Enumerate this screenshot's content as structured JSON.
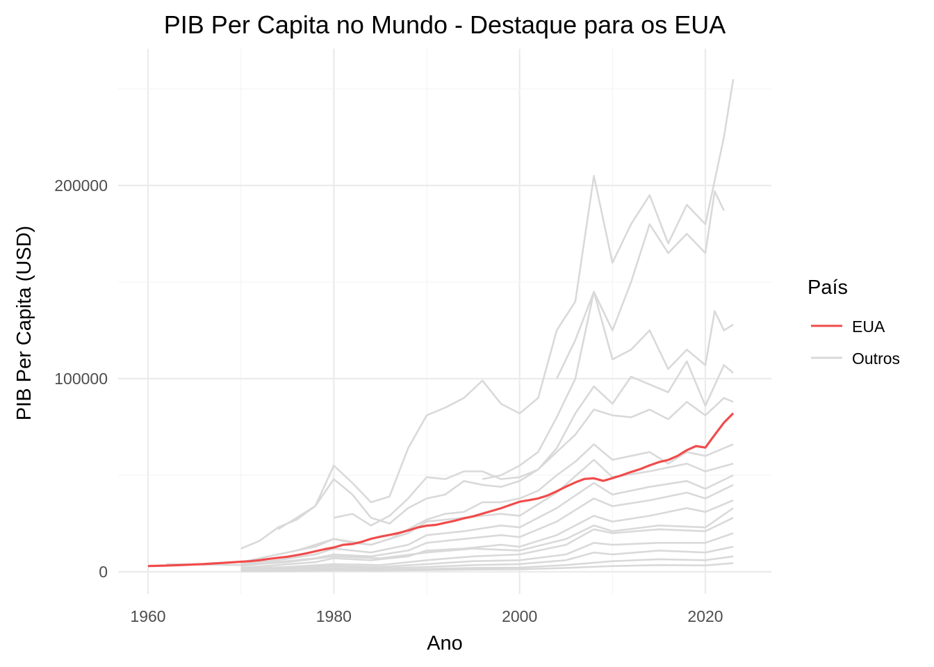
{
  "chart_data": {
    "type": "line",
    "title": "PIB Per Capita no Mundo - Destaque para os EUA",
    "xlabel": "Ano",
    "ylabel": "PIB Per Capita (USD)",
    "xlim": [
      1960,
      2023
    ],
    "ylim": [
      0,
      250000
    ],
    "x_ticks": [
      1960,
      1980,
      2000,
      2020
    ],
    "y_ticks": [
      0,
      100000,
      200000
    ],
    "x_tick_labels": [
      "1960",
      "1980",
      "2000",
      "2020"
    ],
    "y_tick_labels": [
      "0",
      "100000",
      "200000"
    ],
    "grid": true,
    "legend": {
      "title": "País",
      "position": "right",
      "entries": [
        {
          "label": "EUA",
          "color": "#f04b4b"
        },
        {
          "label": "Outros",
          "color": "#d9d9d9"
        }
      ]
    },
    "highlight_series": {
      "name": "EUA",
      "color": "#f04b4b",
      "x": [
        1960,
        1961,
        1962,
        1963,
        1964,
        1965,
        1966,
        1967,
        1968,
        1969,
        1970,
        1971,
        1972,
        1973,
        1974,
        1975,
        1976,
        1977,
        1978,
        1979,
        1980,
        1981,
        1982,
        1983,
        1984,
        1985,
        1986,
        1987,
        1988,
        1989,
        1990,
        1991,
        1992,
        1993,
        1994,
        1995,
        1996,
        1997,
        1998,
        1999,
        2000,
        2001,
        2002,
        2003,
        2004,
        2005,
        2006,
        2007,
        2008,
        2009,
        2010,
        2011,
        2012,
        2013,
        2014,
        2015,
        2016,
        2017,
        2018,
        2019,
        2020,
        2021,
        2022,
        2023
      ],
      "y": [
        3000,
        3100,
        3250,
        3400,
        3600,
        3800,
        4000,
        4300,
        4600,
        4900,
        5200,
        5500,
        6000,
        6700,
        7250,
        7800,
        8600,
        9500,
        10600,
        11700,
        12600,
        14000,
        14400,
        15500,
        17100,
        18200,
        19100,
        20100,
        21400,
        22900,
        23900,
        24300,
        25400,
        26400,
        27700,
        28700,
        30100,
        31500,
        32900,
        34600,
        36300,
        37100,
        38000,
        39500,
        41700,
        44100,
        46300,
        48100,
        48400,
        47100,
        48500,
        50000,
        51700,
        53200,
        55100,
        56800,
        57900,
        60000,
        63000,
        65100,
        64300,
        70900,
        77200,
        82100
      ]
    },
    "other_series_color": "#d9d9d9",
    "other_series": [
      {
        "x": [
          1970,
          1972,
          1974,
          1976,
          1978,
          1980,
          1982,
          1984,
          1986,
          1988,
          1990,
          1992,
          1994,
          1996,
          1998,
          2000,
          2002,
          2004,
          2006,
          2008,
          2010,
          2012,
          2014,
          2016,
          2018,
          2020,
          2022,
          2023
        ],
        "y": [
          12000,
          16000,
          23000,
          27000,
          34000,
          55000,
          46000,
          36000,
          39000,
          64000,
          81000,
          85000,
          90000,
          99000,
          87000,
          82000,
          90000,
          125000,
          140000,
          205000,
          160000,
          180000,
          195000,
          170000,
          190000,
          180000,
          225000,
          255000
        ]
      },
      {
        "x": [
          2004,
          2006,
          2008,
          2010,
          2012,
          2014,
          2016,
          2018,
          2019,
          2020,
          2021,
          2022
        ],
        "y": [
          100000,
          120000,
          145000,
          125000,
          150000,
          180000,
          165000,
          175000,
          170000,
          165000,
          197000,
          187000
        ]
      },
      {
        "x": [
          1996,
          1998,
          2000,
          2002,
          2004,
          2006,
          2008,
          2010,
          2012,
          2014,
          2016,
          2018,
          2020,
          2021,
          2022,
          2023
        ],
        "y": [
          48000,
          50000,
          55000,
          62000,
          80000,
          100000,
          145000,
          110000,
          115000,
          125000,
          105000,
          115000,
          107000,
          135000,
          125000,
          128000
        ]
      },
      {
        "x": [
          1980,
          1982,
          1984,
          1986,
          1988,
          1990,
          1992,
          1994,
          1996,
          1998,
          2000,
          2002,
          2004,
          2006,
          2008,
          2010,
          2012,
          2014,
          2016,
          2018,
          2020,
          2022,
          2023
        ],
        "y": [
          28000,
          30000,
          24000,
          29000,
          38000,
          49000,
          48000,
          52000,
          52000,
          48000,
          49000,
          53000,
          64000,
          82000,
          96000,
          87000,
          101000,
          97000,
          93000,
          109000,
          86000,
          107000,
          103000
        ]
      },
      {
        "x": [
          1974,
          1976,
          1978,
          1980,
          1982,
          1984,
          1986,
          1988,
          1990,
          1992,
          1994,
          1996,
          1998,
          2000,
          2002,
          2004,
          2006,
          2008,
          2010,
          2012,
          2014,
          2016,
          2018,
          2020,
          2022,
          2023
        ],
        "y": [
          22000,
          28000,
          34000,
          48000,
          40000,
          28000,
          25000,
          33000,
          38000,
          40000,
          47000,
          45000,
          44000,
          47000,
          53000,
          62000,
          71000,
          84000,
          81000,
          80000,
          84000,
          79000,
          88000,
          81000,
          90000,
          88000
        ]
      },
      {
        "x": [
          1974,
          1976,
          1978,
          1980,
          1982,
          1984,
          1986,
          1988,
          1990,
          1992,
          1994,
          1996,
          1998,
          2000,
          2002,
          2004,
          2006,
          2008,
          2010,
          2012,
          2014,
          2016,
          2018,
          2020,
          2022,
          2023
        ],
        "y": [
          9000,
          11000,
          14000,
          17000,
          15000,
          14000,
          17000,
          22000,
          27000,
          30000,
          31000,
          36000,
          36000,
          38000,
          42000,
          50000,
          57000,
          66000,
          58000,
          60000,
          62000,
          56000,
          62000,
          60000,
          64000,
          66000
        ]
      },
      {
        "x": [
          1970,
          1974,
          1978,
          1980,
          1984,
          1988,
          1990,
          1994,
          1998,
          2000,
          2004,
          2008,
          2010,
          2014,
          2018,
          2020,
          2023
        ],
        "y": [
          5000,
          9000,
          13000,
          17000,
          14000,
          20000,
          26000,
          28000,
          30000,
          29000,
          41000,
          58000,
          49000,
          52000,
          56000,
          52000,
          56000
        ]
      },
      {
        "x": [
          1970,
          1974,
          1978,
          1980,
          1984,
          1988,
          1990,
          1994,
          1998,
          2000,
          2004,
          2008,
          2010,
          2014,
          2018,
          2020,
          2023
        ],
        "y": [
          4000,
          6000,
          9000,
          12000,
          10000,
          14000,
          19000,
          21000,
          24000,
          23000,
          33000,
          46000,
          40000,
          44000,
          47000,
          43000,
          50000
        ]
      },
      {
        "x": [
          1970,
          1974,
          1978,
          1980,
          1984,
          1988,
          1990,
          1994,
          1998,
          2000,
          2004,
          2008,
          2010,
          2014,
          2018,
          2020,
          2023
        ],
        "y": [
          3000,
          5000,
          7000,
          9000,
          8000,
          11000,
          15000,
          17000,
          19000,
          18000,
          26000,
          38000,
          34000,
          37000,
          41000,
          38000,
          45000
        ]
      },
      {
        "x": [
          1970,
          1974,
          1978,
          1980,
          1984,
          1988,
          1990,
          1994,
          1998,
          2000,
          2004,
          2008,
          2010,
          2014,
          2018,
          2020,
          2023
        ],
        "y": [
          2000,
          3500,
          5000,
          7000,
          6000,
          8000,
          11000,
          12000,
          14000,
          13000,
          19000,
          29000,
          26000,
          29000,
          33000,
          31000,
          37000
        ]
      },
      {
        "x": [
          1970,
          1975,
          1980,
          1985,
          1990,
          1995,
          2000,
          2005,
          2008,
          2010,
          2015,
          2020,
          2023
        ],
        "y": [
          1500,
          2500,
          4000,
          3500,
          6000,
          8000,
          9000,
          14000,
          22000,
          20000,
          22000,
          21000,
          28000
        ]
      },
      {
        "x": [
          1970,
          1975,
          1980,
          1985,
          1990,
          1995,
          2000,
          2005,
          2008,
          2010,
          2015,
          2020,
          2023
        ],
        "y": [
          1000,
          1800,
          3000,
          2500,
          4000,
          5500,
          6000,
          9000,
          15000,
          14000,
          15000,
          15000,
          20000
        ]
      },
      {
        "x": [
          1962,
          1970,
          1975,
          1980,
          1985,
          1990,
          1995,
          2000,
          2005,
          2008,
          2010,
          2015,
          2020,
          2023
        ],
        "y": [
          4000,
          3500,
          5000,
          8000,
          7000,
          10000,
          12000,
          11000,
          17000,
          24000,
          21000,
          24000,
          23000,
          33000
        ]
      },
      {
        "x": [
          1970,
          1975,
          1980,
          1985,
          1990,
          1995,
          2000,
          2005,
          2008,
          2010,
          2015,
          2020,
          2023
        ],
        "y": [
          800,
          1200,
          2000,
          1800,
          2500,
          3500,
          4000,
          6000,
          10000,
          9000,
          11000,
          10000,
          13000
        ]
      },
      {
        "x": [
          1970,
          1975,
          1980,
          1985,
          1990,
          1995,
          2000,
          2005,
          2010,
          2015,
          2020,
          2023
        ],
        "y": [
          500,
          800,
          1200,
          1000,
          1500,
          2000,
          2200,
          3500,
          5500,
          6500,
          6000,
          8000
        ]
      },
      {
        "x": [
          1970,
          1975,
          1980,
          1985,
          1990,
          1995,
          2000,
          2005,
          2010,
          2015,
          2020,
          2023
        ],
        "y": [
          300,
          400,
          700,
          600,
          900,
          1200,
          1300,
          2000,
          3000,
          3500,
          3300,
          4500
        ]
      }
    ]
  }
}
